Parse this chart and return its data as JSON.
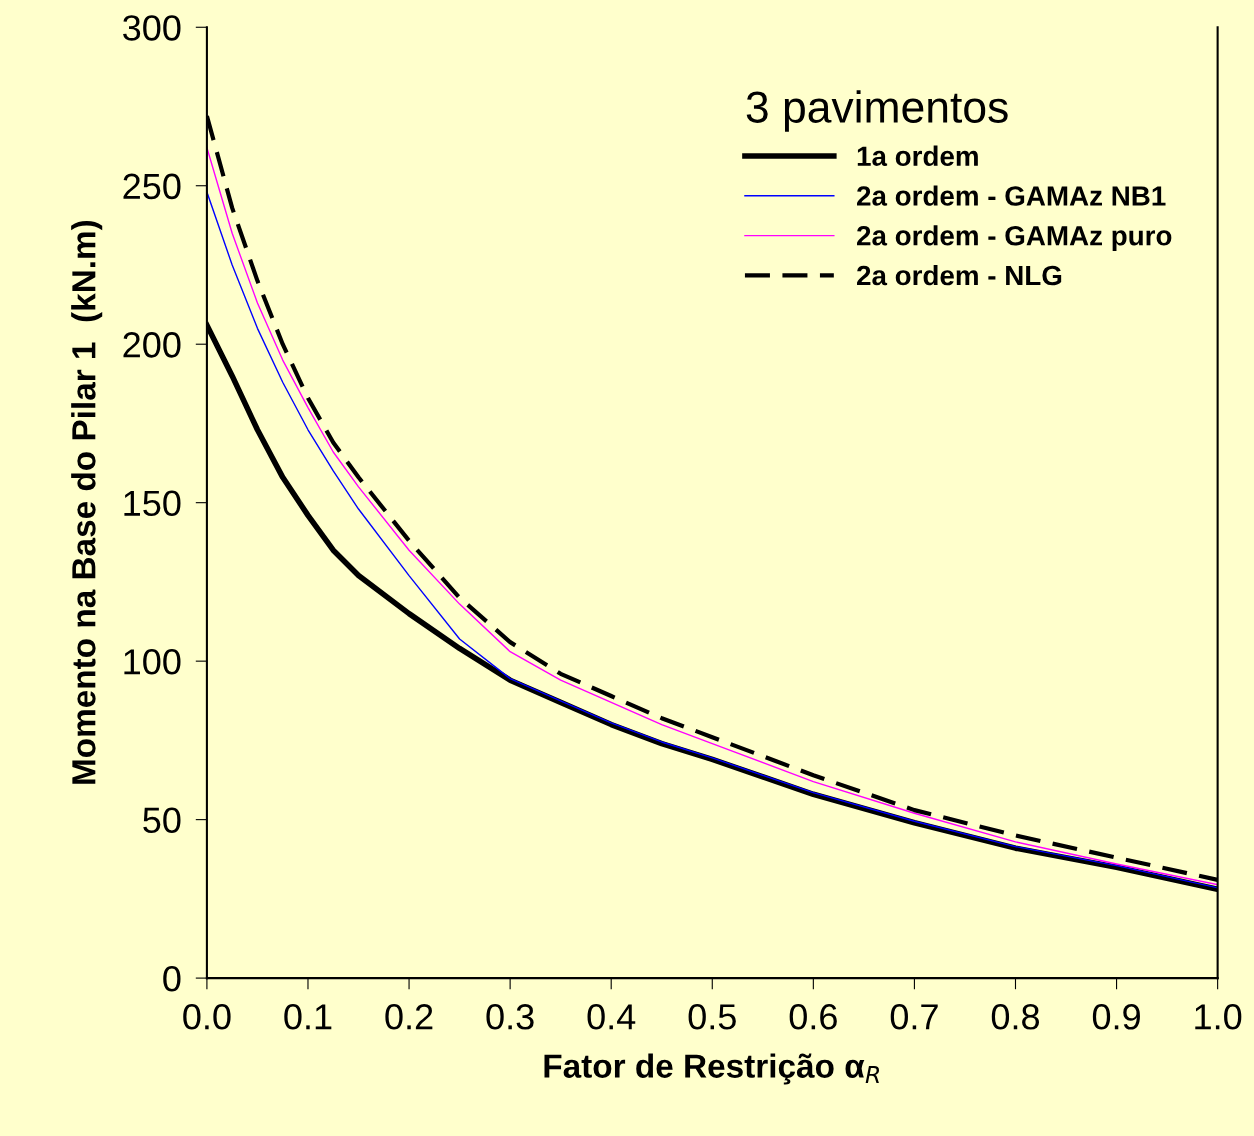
{
  "chart_data": {
    "type": "line",
    "xlabel": "Fator de Restrição α$_{R}$",
    "ylabel": "Momento na Base do Pilar 1  (kN.m)",
    "legend_title": "3 pavimentos",
    "legend": "top right",
    "grid": false,
    "marker": "none",
    "xlim": [
      0,
      1
    ],
    "ylim": [
      0,
      300
    ],
    "xticks": [
      {
        "value": 0,
        "label": "0.0"
      },
      0.1,
      0.2,
      0.3,
      0.4,
      0.5,
      0.6,
      0.7,
      0.8,
      0.9,
      {
        "value": 1,
        "label": "1.0"
      }
    ],
    "yticks": [
      0,
      50,
      100,
      150,
      200,
      250,
      300
    ],
    "x": [
      0,
      0.025,
      0.05,
      0.075,
      0.1,
      0.125,
      0.15,
      0.2,
      0.25,
      0.3,
      0.35,
      0.4,
      0.45,
      0.5,
      0.6,
      0.7,
      0.8,
      0.9,
      1.0
    ],
    "series": [
      {
        "name": "1a ordem",
        "color": "#000000",
        "line_style": "solid",
        "values": [
          206,
          190,
          173,
          158,
          146,
          135,
          127,
          115,
          104,
          94,
          87,
          80,
          74,
          69,
          58,
          49,
          41,
          35,
          28
        ]
      },
      {
        "name": "2a ordem - GAMAz NB1",
        "color": "#0000ff",
        "line_style": "solid",
        "values": [
          248,
          225,
          205,
          188,
          173,
          160,
          148,
          127,
          107,
          94.5,
          87.5,
          80.5,
          74.5,
          69.5,
          58.5,
          49.5,
          41.5,
          35.5,
          28.5
        ]
      },
      {
        "name": "2a ordem - GAMAz puro",
        "color": "#ff00ff",
        "line_style": "solid",
        "values": [
          262,
          235,
          213,
          195,
          180,
          166,
          155,
          135,
          118,
          103,
          94,
          87,
          80,
          74,
          62,
          52,
          43,
          36,
          29.5
        ]
      },
      {
        "name": "2a ordem - NLG",
        "color": "#000000",
        "line_style": "dashed",
        "values": [
          272,
          243,
          220,
          200,
          183,
          169,
          158,
          138,
          120,
          106,
          96,
          89,
          82,
          76,
          64,
          53,
          45,
          38,
          31
        ]
      }
    ]
  }
}
